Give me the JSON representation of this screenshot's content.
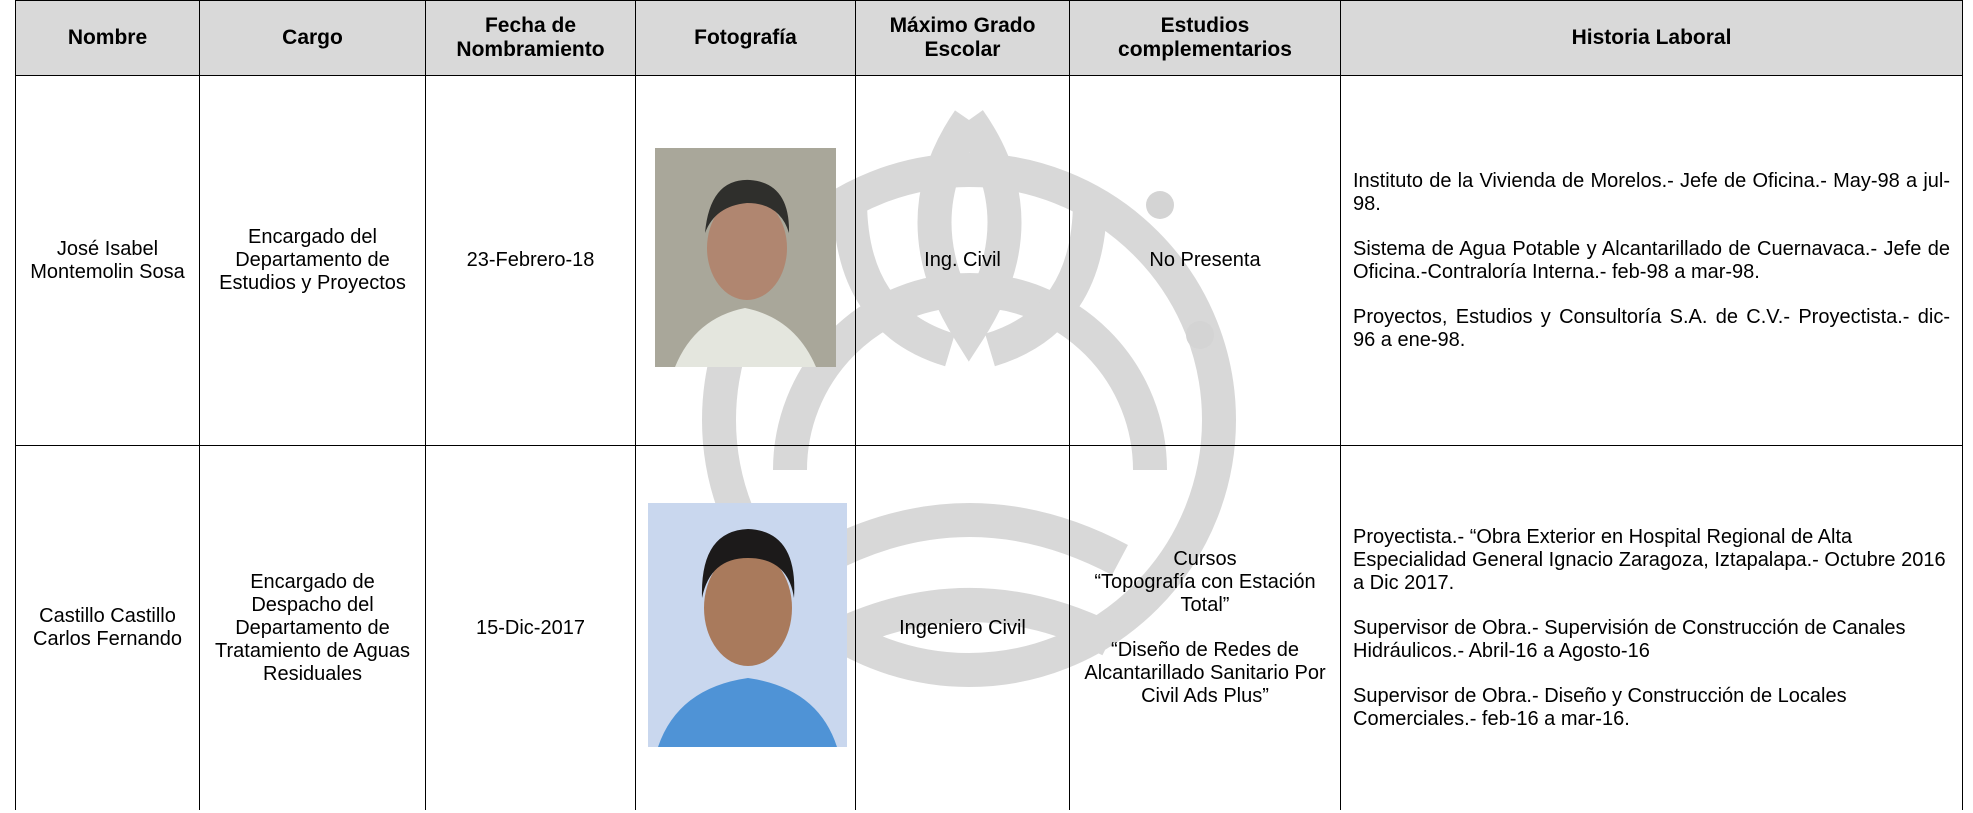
{
  "table": {
    "header": [
      "Nombre",
      "Cargo",
      "Fecha de Nombramiento",
      "Fotografía",
      "Máximo Grado Escolar",
      "Estudios complementarios",
      "Historia Laboral"
    ],
    "rows": [
      {
        "nombre": "José Isabel Montemolin Sosa",
        "cargo": "Encargado del Departamento de Estudios y Proyectos",
        "fecha": "23-Febrero-18",
        "grado": "Ing. Civil",
        "estudios": [
          "No Presenta"
        ],
        "historia": [
          "Instituto de la Vivienda de Morelos.- Jefe de Oficina.- May-98 a jul-98.",
          "Sistema de Agua Potable y Alcantarillado de Cuernavaca.- Jefe de Oficina.-Contraloría Interna.- feb-98 a mar-98.",
          "Proyectos, Estudios y Consultoría S.A. de C.V.- Proyectista.- dic-96 a ene-98."
        ]
      },
      {
        "nombre": "Castillo Castillo Carlos Fernando",
        "cargo": "Encargado de Despacho del Departamento de Tratamiento de Aguas Residuales",
        "fecha": "15-Dic-2017",
        "grado": "Ingeniero Civil",
        "estudios": [
          "Cursos",
          "“Topografía con Estación Total”",
          "“Diseño de Redes de Alcantarillado Sanitario Por Civil Ads Plus”"
        ],
        "historia": [
          "Proyectista.- “Obra Exterior en Hospital Regional de Alta Especialidad General Ignacio Zaragoza, Iztapalapa.- Octubre 2016 a Dic 2017.",
          "Supervisor de Obra.- Supervisión de Construcción de Canales Hidráulicos.- Abril-16 a Agosto-16",
          "Supervisor de Obra.- Diseño y Construcción de Locales Comerciales.- feb-16 a mar-16."
        ]
      }
    ]
  }
}
